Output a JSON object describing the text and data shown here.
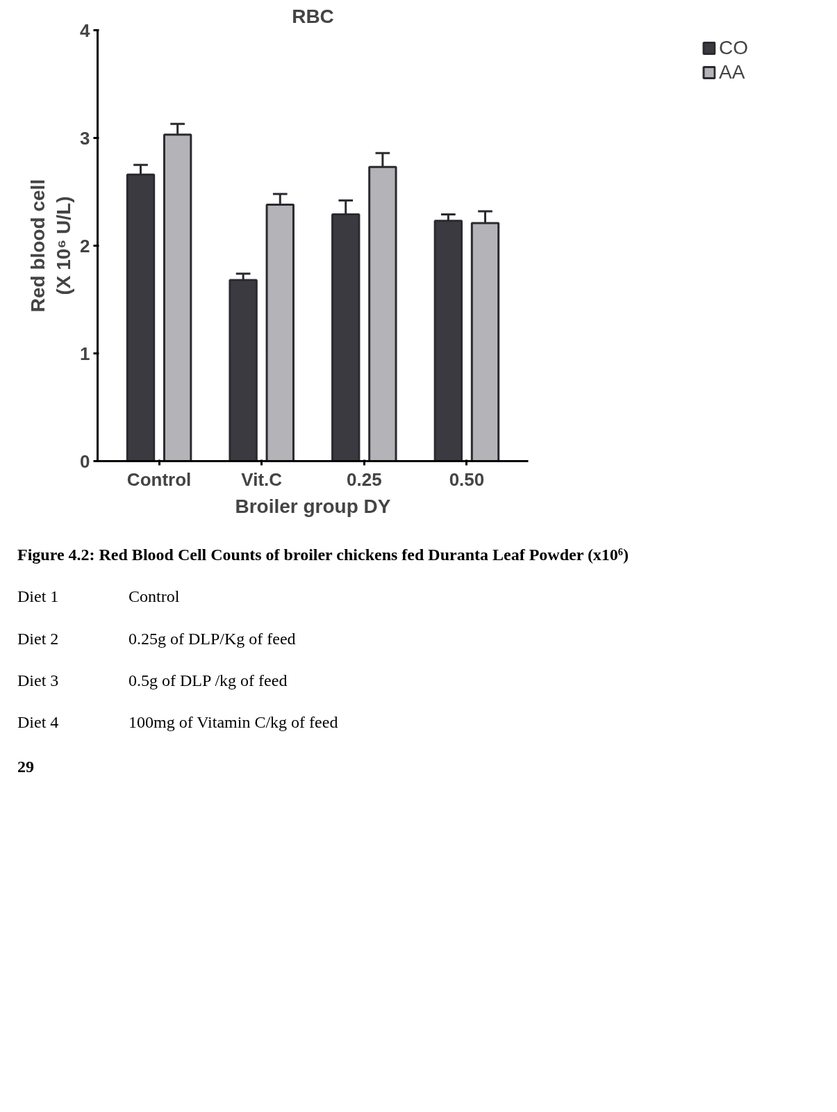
{
  "chart_data": {
    "type": "bar",
    "title": "RBC",
    "xlabel": "Broiler group DY",
    "ylabel": "Red blood cell\n(X 10⁶ U/L)",
    "categories": [
      "Control",
      "Vit.C",
      "0.25",
      "0.50"
    ],
    "series": [
      {
        "name": "CO",
        "color": "#3b3a40",
        "values": [
          2.66,
          1.68,
          2.29,
          2.23
        ],
        "errors": [
          [
            2.66,
            2.75
          ],
          [
            1.68,
            1.74
          ],
          [
            2.29,
            2.42
          ],
          [
            2.23,
            2.29
          ]
        ]
      },
      {
        "name": "AA",
        "color": "#b4b3b8",
        "values": [
          3.03,
          2.38,
          2.73,
          2.21
        ],
        "errors": [
          [
            3.03,
            3.13
          ],
          [
            2.38,
            2.48
          ],
          [
            2.73,
            2.86
          ],
          [
            2.21,
            2.32
          ]
        ]
      }
    ],
    "ylim": [
      0,
      4
    ],
    "yticks": [
      0,
      1,
      2,
      3,
      4
    ],
    "grid": false,
    "legend": "top right",
    "annotations": [
      "Figure 4.2: Red Blood Cell Counts of broiler chickens fed Duranta Leaf Powder (x10⁶)",
      "Diet 1\tControl",
      "Diet 2\t0.25g of DLP/Kg of feed",
      "Diet 3\t0.5g of DLP /kg of feed",
      "Diet 4\t100mg of Vitamin C/kg of feed",
      "29"
    ]
  }
}
